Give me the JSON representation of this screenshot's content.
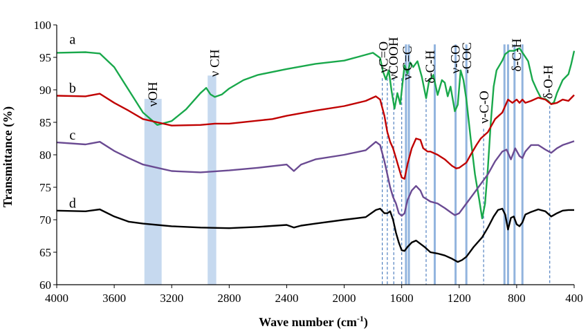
{
  "chart_data": {
    "type": "line",
    "xlabel": "Wave number (cm",
    "xlabel_sup": "-1",
    "xlabel_close": ")",
    "ylabel": "Transmittance (%)",
    "xlim": [
      4000,
      400
    ],
    "ylim": [
      60,
      100
    ],
    "x_ticks": [
      4000,
      3600,
      3200,
      2800,
      2400,
      2000,
      1600,
      1200,
      800,
      400
    ],
    "y_ticks": [
      60,
      65,
      70,
      75,
      80,
      85,
      90,
      95,
      100
    ],
    "grid": false,
    "series": [
      {
        "name": "a",
        "color": "#19a84b",
        "label_pos": [
          3890,
          97.7
        ],
        "points": [
          [
            4000,
            95.7
          ],
          [
            3800,
            95.8
          ],
          [
            3700,
            95.6
          ],
          [
            3600,
            93.5
          ],
          [
            3500,
            90.0
          ],
          [
            3400,
            86.5
          ],
          [
            3300,
            84.6
          ],
          [
            3200,
            85.2
          ],
          [
            3100,
            87.0
          ],
          [
            3000,
            89.5
          ],
          [
            2960,
            90.3
          ],
          [
            2930,
            89.3
          ],
          [
            2900,
            88.9
          ],
          [
            2850,
            89.3
          ],
          [
            2800,
            90.2
          ],
          [
            2700,
            91.5
          ],
          [
            2600,
            92.3
          ],
          [
            2400,
            93.2
          ],
          [
            2200,
            94.0
          ],
          [
            2000,
            94.5
          ],
          [
            1900,
            95.1
          ],
          [
            1800,
            95.7
          ],
          [
            1750,
            94.9
          ],
          [
            1730,
            92.8
          ],
          [
            1710,
            91.6
          ],
          [
            1690,
            93.0
          ],
          [
            1670,
            89.8
          ],
          [
            1650,
            87.1
          ],
          [
            1630,
            89.5
          ],
          [
            1610,
            87.8
          ],
          [
            1580,
            93.8
          ],
          [
            1560,
            92.5
          ],
          [
            1540,
            94.2
          ],
          [
            1520,
            93.5
          ],
          [
            1490,
            94.4
          ],
          [
            1460,
            92.0
          ],
          [
            1430,
            88.7
          ],
          [
            1410,
            91.3
          ],
          [
            1380,
            92.3
          ],
          [
            1350,
            89.2
          ],
          [
            1320,
            91.5
          ],
          [
            1300,
            91.1
          ],
          [
            1280,
            89.0
          ],
          [
            1260,
            90.5
          ],
          [
            1230,
            86.7
          ],
          [
            1210,
            87.7
          ],
          [
            1190,
            93.0
          ],
          [
            1170,
            91.5
          ],
          [
            1150,
            88.5
          ],
          [
            1120,
            82.5
          ],
          [
            1090,
            77.0
          ],
          [
            1060,
            73.0
          ],
          [
            1040,
            70.2
          ],
          [
            1020,
            72.5
          ],
          [
            1000,
            78.0
          ],
          [
            980,
            85.0
          ],
          [
            960,
            90.5
          ],
          [
            940,
            93.0
          ],
          [
            900,
            94.5
          ],
          [
            880,
            95.5
          ],
          [
            850,
            96.0
          ],
          [
            820,
            96.0
          ],
          [
            780,
            96.4
          ],
          [
            750,
            95.4
          ],
          [
            720,
            94.4
          ],
          [
            690,
            91.5
          ],
          [
            660,
            90.0
          ],
          [
            630,
            88.7
          ],
          [
            600,
            88.6
          ],
          [
            580,
            88.3
          ],
          [
            560,
            87.8
          ],
          [
            540,
            88.1
          ],
          [
            520,
            89.5
          ],
          [
            480,
            91.5
          ],
          [
            440,
            92.4
          ],
          [
            420,
            94.0
          ],
          [
            400,
            96.0
          ]
        ]
      },
      {
        "name": "b",
        "color": "#c00000",
        "label_pos": [
          3890,
          90.2
        ],
        "points": [
          [
            4000,
            89.1
          ],
          [
            3800,
            89.0
          ],
          [
            3700,
            89.4
          ],
          [
            3600,
            88.0
          ],
          [
            3500,
            86.8
          ],
          [
            3400,
            85.5
          ],
          [
            3300,
            85.0
          ],
          [
            3200,
            84.5
          ],
          [
            3000,
            84.6
          ],
          [
            2900,
            84.8
          ],
          [
            2800,
            84.8
          ],
          [
            2500,
            85.5
          ],
          [
            2400,
            86.0
          ],
          [
            2200,
            86.8
          ],
          [
            2000,
            87.5
          ],
          [
            1850,
            88.3
          ],
          [
            1780,
            89.0
          ],
          [
            1750,
            88.5
          ],
          [
            1720,
            86.0
          ],
          [
            1700,
            83.5
          ],
          [
            1680,
            82.0
          ],
          [
            1660,
            81.0
          ],
          [
            1640,
            79.5
          ],
          [
            1620,
            78.0
          ],
          [
            1600,
            76.5
          ],
          [
            1580,
            76.3
          ],
          [
            1560,
            78.5
          ],
          [
            1530,
            81.0
          ],
          [
            1500,
            82.5
          ],
          [
            1470,
            82.3
          ],
          [
            1450,
            81.0
          ],
          [
            1420,
            80.5
          ],
          [
            1400,
            80.5
          ],
          [
            1350,
            80.0
          ],
          [
            1300,
            79.3
          ],
          [
            1250,
            78.3
          ],
          [
            1220,
            77.9
          ],
          [
            1200,
            78.0
          ],
          [
            1150,
            78.8
          ],
          [
            1120,
            80.0
          ],
          [
            1080,
            81.5
          ],
          [
            1050,
            82.5
          ],
          [
            1000,
            83.5
          ],
          [
            950,
            85.5
          ],
          [
            900,
            86.5
          ],
          [
            860,
            88.5
          ],
          [
            830,
            88.0
          ],
          [
            800,
            88.5
          ],
          [
            780,
            88.0
          ],
          [
            760,
            88.5
          ],
          [
            740,
            88.0
          ],
          [
            700,
            88.3
          ],
          [
            650,
            88.8
          ],
          [
            600,
            88.5
          ],
          [
            560,
            87.8
          ],
          [
            520,
            88.0
          ],
          [
            480,
            88.5
          ],
          [
            440,
            88.3
          ],
          [
            400,
            89.2
          ]
        ]
      },
      {
        "name": "c",
        "color": "#6a4a92",
        "label_pos": [
          3890,
          83.0
        ],
        "points": [
          [
            4000,
            81.9
          ],
          [
            3800,
            81.6
          ],
          [
            3700,
            82.0
          ],
          [
            3600,
            80.6
          ],
          [
            3500,
            79.5
          ],
          [
            3400,
            78.5
          ],
          [
            3300,
            78.0
          ],
          [
            3200,
            77.5
          ],
          [
            3000,
            77.3
          ],
          [
            2800,
            77.6
          ],
          [
            2600,
            78.0
          ],
          [
            2400,
            78.5
          ],
          [
            2350,
            77.5
          ],
          [
            2300,
            78.5
          ],
          [
            2200,
            79.3
          ],
          [
            2000,
            80.0
          ],
          [
            1850,
            80.7
          ],
          [
            1780,
            82.0
          ],
          [
            1750,
            81.5
          ],
          [
            1720,
            79.0
          ],
          [
            1700,
            77.0
          ],
          [
            1680,
            75.0
          ],
          [
            1660,
            73.5
          ],
          [
            1640,
            72.5
          ],
          [
            1620,
            71.0
          ],
          [
            1600,
            70.6
          ],
          [
            1580,
            71.0
          ],
          [
            1560,
            73.0
          ],
          [
            1530,
            74.5
          ],
          [
            1500,
            75.2
          ],
          [
            1470,
            74.5
          ],
          [
            1450,
            73.5
          ],
          [
            1400,
            72.8
          ],
          [
            1350,
            72.5
          ],
          [
            1300,
            71.8
          ],
          [
            1250,
            71.0
          ],
          [
            1230,
            70.7
          ],
          [
            1200,
            71.0
          ],
          [
            1150,
            72.5
          ],
          [
            1100,
            74.0
          ],
          [
            1050,
            75.5
          ],
          [
            1000,
            77.0
          ],
          [
            950,
            79.0
          ],
          [
            900,
            80.5
          ],
          [
            870,
            80.8
          ],
          [
            840,
            79.3
          ],
          [
            810,
            81.0
          ],
          [
            780,
            79.8
          ],
          [
            760,
            79.5
          ],
          [
            740,
            80.5
          ],
          [
            700,
            81.5
          ],
          [
            650,
            81.5
          ],
          [
            600,
            80.8
          ],
          [
            560,
            80.3
          ],
          [
            520,
            81.0
          ],
          [
            480,
            81.5
          ],
          [
            440,
            81.8
          ],
          [
            400,
            82.1
          ]
        ]
      },
      {
        "name": "d",
        "color": "#000000",
        "label_pos": [
          3890,
          72.5
        ],
        "points": [
          [
            4000,
            71.4
          ],
          [
            3800,
            71.3
          ],
          [
            3700,
            71.6
          ],
          [
            3600,
            70.5
          ],
          [
            3500,
            69.7
          ],
          [
            3400,
            69.4
          ],
          [
            3300,
            69.2
          ],
          [
            3200,
            69.0
          ],
          [
            3000,
            68.8
          ],
          [
            2800,
            68.7
          ],
          [
            2600,
            68.9
          ],
          [
            2400,
            69.2
          ],
          [
            2350,
            68.8
          ],
          [
            2300,
            69.1
          ],
          [
            2200,
            69.4
          ],
          [
            2000,
            70.0
          ],
          [
            1850,
            70.4
          ],
          [
            1780,
            71.5
          ],
          [
            1750,
            71.7
          ],
          [
            1720,
            71.0
          ],
          [
            1700,
            71.0
          ],
          [
            1680,
            71.3
          ],
          [
            1660,
            70.0
          ],
          [
            1640,
            68.0
          ],
          [
            1620,
            66.5
          ],
          [
            1600,
            65.3
          ],
          [
            1580,
            65.2
          ],
          [
            1560,
            65.8
          ],
          [
            1530,
            66.5
          ],
          [
            1500,
            66.8
          ],
          [
            1470,
            66.3
          ],
          [
            1440,
            65.8
          ],
          [
            1400,
            65.0
          ],
          [
            1350,
            64.8
          ],
          [
            1300,
            64.5
          ],
          [
            1250,
            64.0
          ],
          [
            1210,
            63.5
          ],
          [
            1180,
            63.8
          ],
          [
            1150,
            64.3
          ],
          [
            1100,
            65.8
          ],
          [
            1060,
            66.8
          ],
          [
            1040,
            67.3
          ],
          [
            1000,
            68.8
          ],
          [
            960,
            70.5
          ],
          [
            930,
            71.5
          ],
          [
            900,
            71.7
          ],
          [
            880,
            70.8
          ],
          [
            860,
            68.5
          ],
          [
            840,
            70.3
          ],
          [
            820,
            70.5
          ],
          [
            800,
            69.3
          ],
          [
            780,
            69.0
          ],
          [
            760,
            69.6
          ],
          [
            740,
            70.8
          ],
          [
            700,
            71.2
          ],
          [
            650,
            71.6
          ],
          [
            600,
            71.3
          ],
          [
            560,
            70.5
          ],
          [
            520,
            71.0
          ],
          [
            480,
            71.4
          ],
          [
            440,
            71.5
          ],
          [
            400,
            71.5
          ]
        ]
      }
    ],
    "bands": [
      {
        "name": "voh",
        "from": 3390,
        "to": 3270,
        "ymin": 60,
        "ymax": 88.6,
        "color": "#bcd2ec"
      },
      {
        "name": "vch",
        "from": 2950,
        "to": 2890,
        "ymin": 60,
        "ymax": 92.2,
        "color": "#bcd2ec"
      }
    ],
    "dashed_lines": [
      {
        "x": 1735,
        "ymax": 91.8
      },
      {
        "x": 1700,
        "ymax": 91.8
      },
      {
        "x": 1655,
        "ymax": 91.8
      },
      {
        "x": 1600,
        "ymax": 91.8
      },
      {
        "x": 1430,
        "ymax": 88.5
      },
      {
        "x": 1030,
        "ymax": 84.0
      },
      {
        "x": 570,
        "ymax": 87.5
      }
    ],
    "solid_bars": [
      {
        "x": 1570,
        "ymax": 97.0,
        "w": 3
      },
      {
        "x": 1550,
        "ymax": 97.0,
        "w": 3
      },
      {
        "x": 1370,
        "ymax": 97.0,
        "w": 3
      },
      {
        "x": 1225,
        "ymax": 97.0,
        "w": 3
      },
      {
        "x": 1150,
        "ymax": 97.0,
        "w": 3
      },
      {
        "x": 885,
        "ymax": 97.0,
        "w": 3
      },
      {
        "x": 860,
        "ymax": 97.0,
        "w": 3
      },
      {
        "x": 815,
        "ymax": 97.0,
        "w": 3
      },
      {
        "x": 760,
        "ymax": 97.0,
        "w": 3
      }
    ],
    "annotations": [
      {
        "text": "νOH",
        "x": 3330,
        "y": 87.4,
        "rotate": true
      },
      {
        "text": "ν CH",
        "x": 2900,
        "y": 92.0,
        "rotate": true
      },
      {
        "text": "νC=O",
        "x": 1725,
        "y": 92.6,
        "rotate": true
      },
      {
        "text": "νCOOH",
        "x": 1655,
        "y": 91.5,
        "rotate": true
      },
      {
        "text": "ν C=C",
        "x": 1560,
        "y": 91.5,
        "rotate": true
      },
      {
        "text": "δ-C-H",
        "x": 1400,
        "y": 91.0,
        "rotate": true
      },
      {
        "text": "ν-CO",
        "x": 1225,
        "y": 92.5,
        "rotate": true
      },
      {
        "text": "-COC",
        "x": 1145,
        "y": 92.5,
        "rotate": true
      },
      {
        "text": "ν-C-O",
        "x": 1025,
        "y": 84.8,
        "rotate": true
      },
      {
        "text": "δ-C-H",
        "x": 800,
        "y": 92.8,
        "rotate": true
      },
      {
        "text": "δ-O-H",
        "x": 580,
        "y": 88.6,
        "rotate": true
      }
    ]
  }
}
